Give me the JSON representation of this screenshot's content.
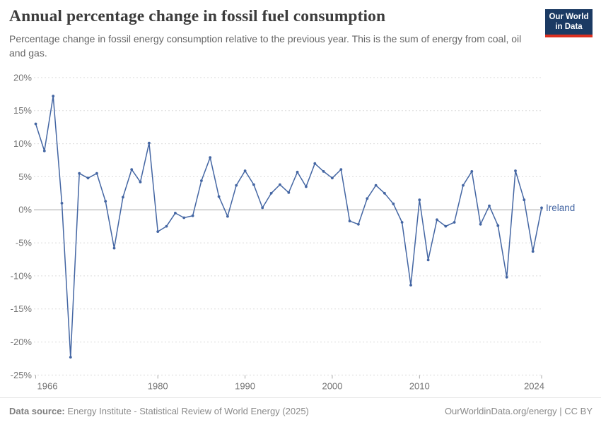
{
  "header": {
    "title": "Annual percentage change in fossil fuel consumption",
    "subtitle": "Percentage change in fossil energy consumption relative to the previous year. This is the sum of energy from coal, oil and gas.",
    "logo_line1": "Our World",
    "logo_line2": "in Data"
  },
  "footer": {
    "source_label": "Data source:",
    "source_text": " Energy Institute - Statistical Review of World Energy (2025)",
    "credit": "OurWorldinData.org/energy | CC BY"
  },
  "colors": {
    "line": "#4466a3",
    "entity_label": "#4466a3",
    "logo_bg": "#1b3a63",
    "logo_stripe": "#dc2f1f",
    "grid": "#dcdcdc",
    "zero_line": "#a3a3a3",
    "axis_tick": "#a8a8a8",
    "axis_text": "#737373"
  },
  "chart_data": {
    "type": "line",
    "title": "Annual percentage change in fossil fuel consumption",
    "entity": "Ireland",
    "ylabel": "",
    "xlabel": "",
    "y_unit": "%",
    "xlim": [
      1966,
      2024
    ],
    "ylim": [
      -25,
      20
    ],
    "grid": "horizontal-dashed",
    "x_ticks": [
      1966,
      1980,
      1990,
      2000,
      2010,
      2024
    ],
    "y_ticks": [
      20,
      15,
      10,
      5,
      0,
      -5,
      -10,
      -15,
      -20,
      -25
    ],
    "x": [
      1966,
      1967,
      1968,
      1969,
      1970,
      1971,
      1972,
      1973,
      1974,
      1975,
      1976,
      1977,
      1978,
      1979,
      1980,
      1981,
      1982,
      1983,
      1984,
      1985,
      1986,
      1987,
      1988,
      1989,
      1990,
      1991,
      1992,
      1993,
      1994,
      1995,
      1996,
      1997,
      1998,
      1999,
      2000,
      2001,
      2002,
      2003,
      2004,
      2005,
      2006,
      2007,
      2008,
      2009,
      2010,
      2011,
      2012,
      2013,
      2014,
      2015,
      2016,
      2017,
      2018,
      2019,
      2020,
      2021,
      2022,
      2023,
      2024
    ],
    "values": [
      13.0,
      8.9,
      17.2,
      1.0,
      -22.3,
      5.5,
      4.8,
      5.5,
      1.3,
      -5.8,
      1.9,
      6.1,
      4.2,
      10.1,
      -3.3,
      -2.5,
      -0.5,
      -1.2,
      -0.9,
      4.4,
      7.9,
      2.0,
      -1.0,
      3.7,
      5.9,
      3.8,
      0.3,
      2.5,
      3.8,
      2.6,
      5.7,
      3.5,
      7.0,
      5.8,
      4.8,
      6.1,
      -1.7,
      -2.2,
      1.7,
      3.7,
      2.5,
      0.9,
      -1.9,
      -11.4,
      1.5,
      -7.6,
      -1.5,
      -2.5,
      -1.9,
      3.7,
      5.8,
      -2.2,
      0.6,
      -2.4,
      -10.2,
      5.9,
      1.5,
      -6.3,
      0.3
    ]
  }
}
